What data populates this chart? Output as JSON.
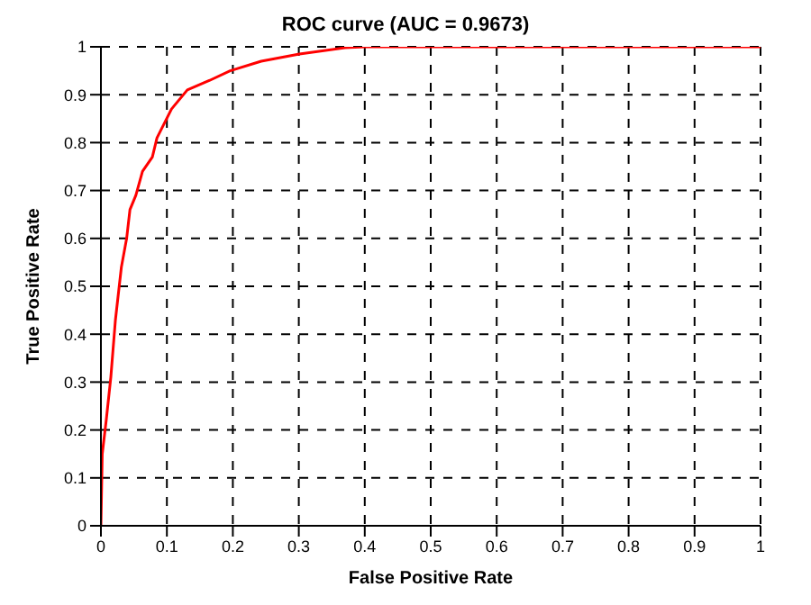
{
  "chart_data": {
    "type": "line",
    "title": "ROC curve (AUC = 0.9673)",
    "xlabel": "False Positive Rate",
    "ylabel": "True Positive Rate",
    "x": [
      0,
      0.002,
      0.008,
      0.015,
      0.022,
      0.031,
      0.039,
      0.044,
      0.053,
      0.063,
      0.078,
      0.085,
      0.107,
      0.131,
      0.165,
      0.196,
      0.243,
      0.301,
      0.37,
      0.4,
      1
    ],
    "series": [
      {
        "color": "#ff0000",
        "values": [
          0,
          0.15,
          0.22,
          0.31,
          0.43,
          0.54,
          0.6,
          0.66,
          0.69,
          0.74,
          0.77,
          0.81,
          0.87,
          0.91,
          0.93,
          0.95,
          0.97,
          0.985,
          0.998,
          1,
          1
        ]
      }
    ],
    "xlim": [
      0,
      1
    ],
    "ylim": [
      0,
      1
    ],
    "xticks": [
      0,
      0.1,
      0.2,
      0.3,
      0.4,
      0.5,
      0.6,
      0.7,
      0.8,
      0.9,
      1
    ],
    "yticks": [
      0,
      0.1,
      0.2,
      0.3,
      0.4,
      0.5,
      0.6,
      0.7,
      0.8,
      0.9,
      1
    ],
    "grid": true,
    "line_style": "solid",
    "marker": "none"
  }
}
